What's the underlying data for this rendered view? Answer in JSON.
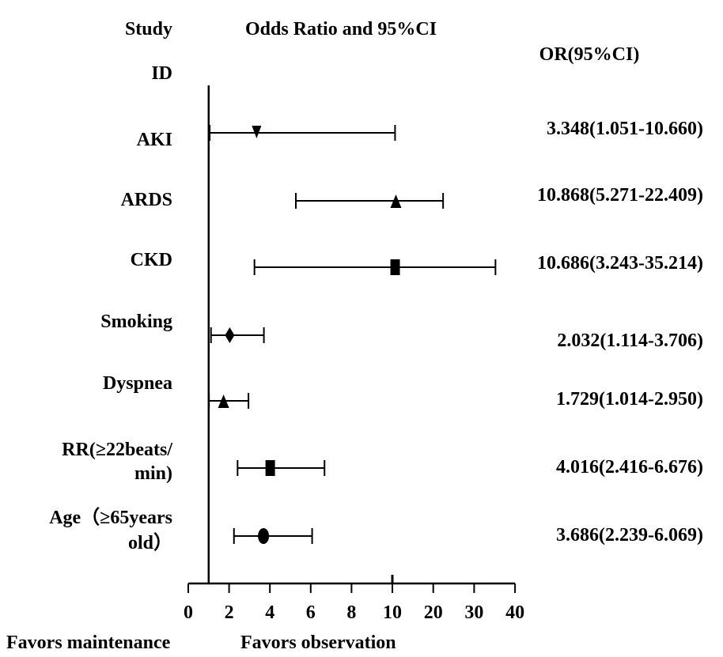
{
  "header": {
    "study": "Study",
    "id": "ID",
    "title": "Odds Ratio and 95%CI",
    "or_header": "OR(95%CI)"
  },
  "footer": {
    "left": "Favors maintenance",
    "right": "Favors observation"
  },
  "chart_data": {
    "type": "forest",
    "reference_line": 1,
    "x_ticks": [
      "0",
      "2",
      "4",
      "6",
      "8",
      "10",
      "20",
      "30",
      "40"
    ],
    "rows": [
      {
        "label": [
          "AKI"
        ],
        "or": 3.348,
        "lo": 1.051,
        "hi": 10.66,
        "text": "3.348(1.051-10.660)",
        "marker": "triangle-down"
      },
      {
        "label": [
          "ARDS"
        ],
        "or": 10.868,
        "lo": 5.271,
        "hi": 22.409,
        "text": "10.868(5.271-22.409)",
        "marker": "triangle-up"
      },
      {
        "label": [
          "CKD"
        ],
        "or": 10.686,
        "lo": 3.243,
        "hi": 35.214,
        "text": "10.686(3.243-35.214)",
        "marker": "square"
      },
      {
        "label": [
          "Smoking"
        ],
        "or": 2.032,
        "lo": 1.114,
        "hi": 3.706,
        "text": "2.032(1.114-3.706)",
        "marker": "diamond"
      },
      {
        "label": [
          "Dyspnea"
        ],
        "or": 1.729,
        "lo": 1.014,
        "hi": 2.95,
        "text": "1.729(1.014-2.950)",
        "marker": "triangle-up"
      },
      {
        "label": [
          "RR(≥22beats/",
          "min)"
        ],
        "or": 4.016,
        "lo": 2.416,
        "hi": 6.676,
        "text": "4.016(2.416-6.676)",
        "marker": "square"
      },
      {
        "label": [
          "Age（≥65years",
          "old）"
        ],
        "or": 3.686,
        "lo": 2.239,
        "hi": 6.069,
        "text": "3.686(2.239-6.069)",
        "marker": "circle"
      }
    ]
  }
}
